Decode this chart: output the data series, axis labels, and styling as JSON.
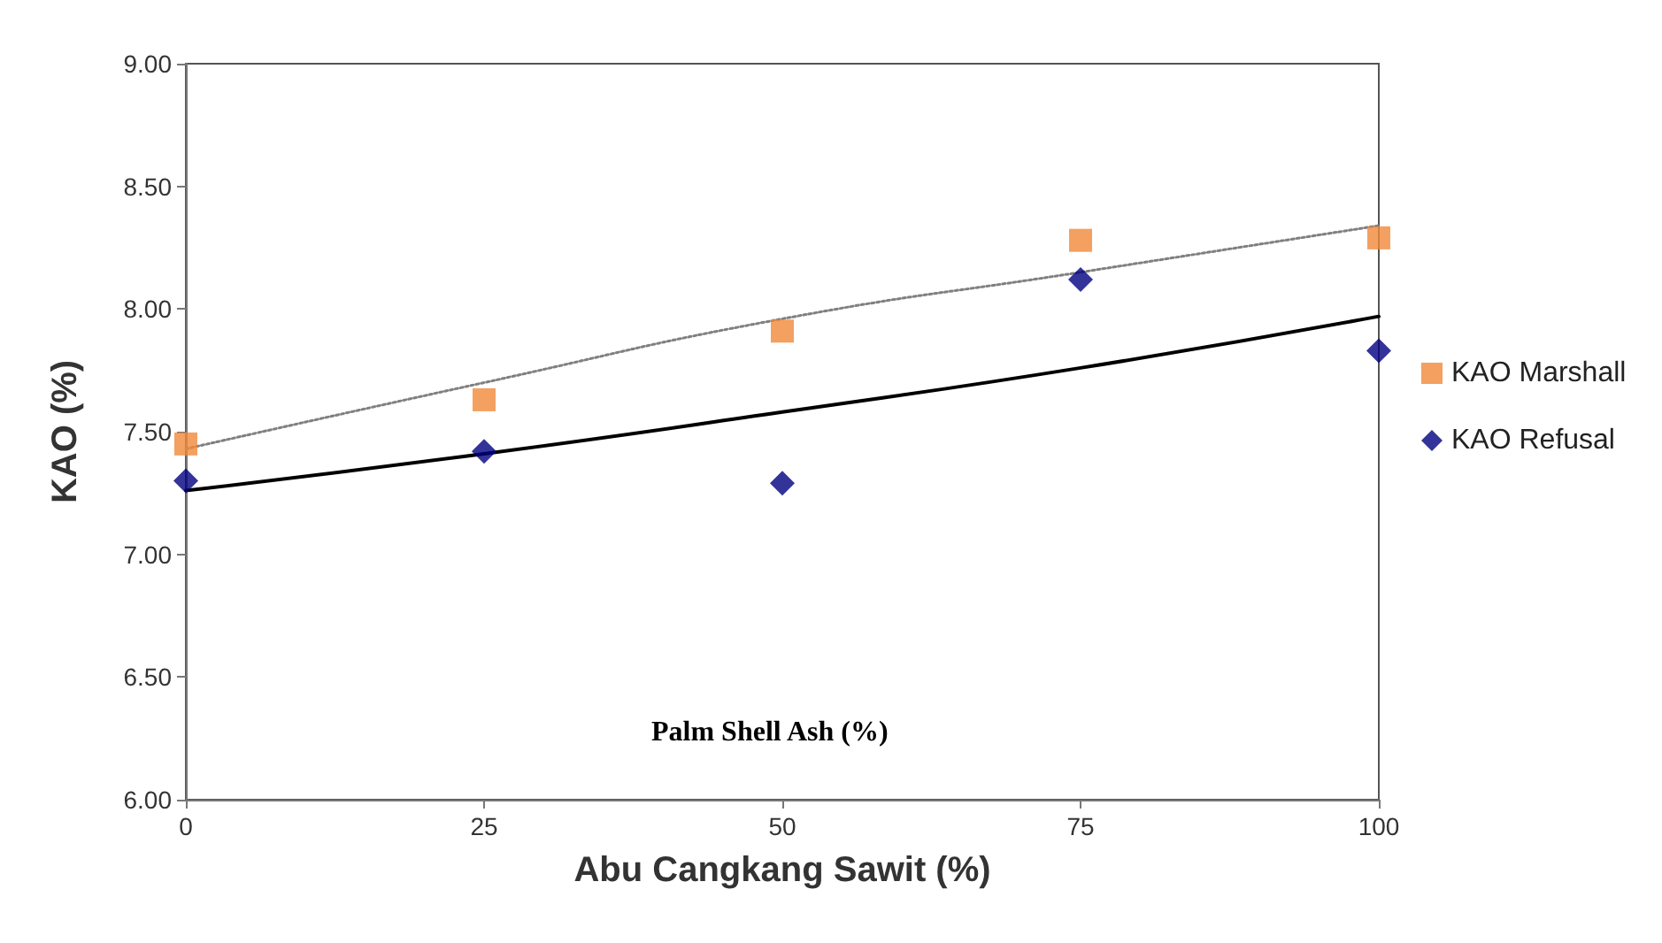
{
  "chart_data": {
    "type": "scatter",
    "xlabel": "Abu Cangkang Sawit (%)",
    "ylabel": "KAO (%)",
    "annotations": [
      "Palm Shell Ash (%)"
    ],
    "x": [
      0,
      25,
      50,
      75,
      100
    ],
    "series": [
      {
        "name": "KAO Marshall",
        "color": "#f0883a",
        "marker": "square",
        "values": [
          7.45,
          7.63,
          7.91,
          8.28,
          8.29
        ]
      },
      {
        "name": "KAO Refusal",
        "color": "#000080",
        "marker": "diamond",
        "values": [
          7.3,
          7.42,
          7.29,
          8.12,
          7.83
        ]
      },
      {
        "type": "line",
        "color": "#808080",
        "line_style": "dotted",
        "marker": "none",
        "x": [
          0,
          25,
          50,
          75,
          100
        ],
        "values": [
          7.43,
          7.7,
          7.96,
          8.15,
          8.34
        ]
      },
      {
        "type": "line",
        "color": "#000000",
        "line_style": "solid",
        "marker": "none",
        "x": [
          0,
          25,
          50,
          75,
          100
        ],
        "values": [
          7.26,
          7.41,
          7.58,
          7.76,
          7.97
        ]
      }
    ],
    "xlim": [
      0,
      100
    ],
    "xticks": [
      0,
      25,
      50,
      75,
      100
    ],
    "ylim": [
      6,
      9
    ],
    "yticks": [
      {
        "value": 6,
        "label": "6.00"
      },
      {
        "value": 6.5,
        "label": "6.50"
      },
      {
        "value": 7,
        "label": "7.00"
      },
      {
        "value": 7.5,
        "label": "7.50"
      },
      {
        "value": 8,
        "label": "8.00"
      },
      {
        "value": 8.5,
        "label": "8.50"
      },
      {
        "value": 9,
        "label": "9.00"
      }
    ],
    "grid": false,
    "legend": "right"
  }
}
